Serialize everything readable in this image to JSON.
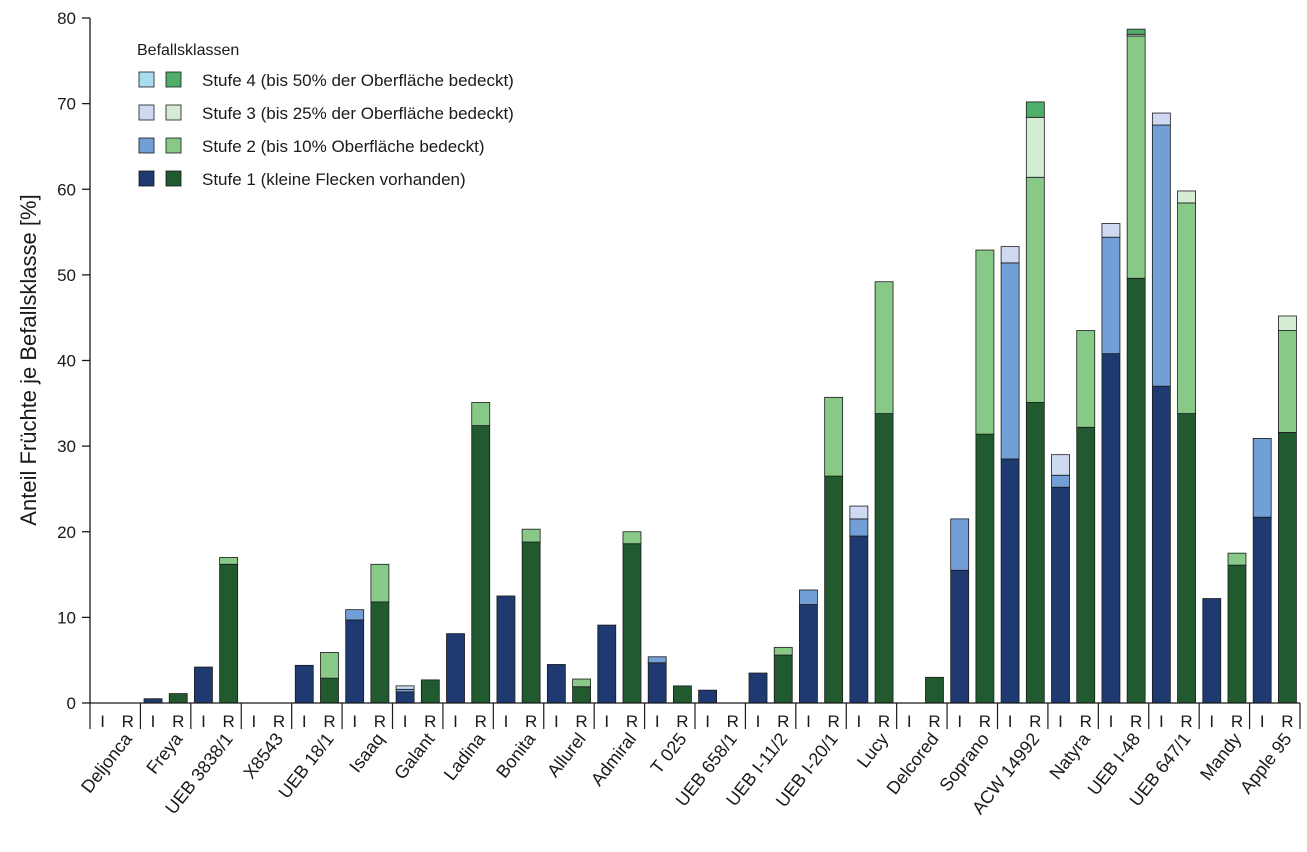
{
  "chart_data": {
    "type": "bar",
    "stacked": true,
    "title": "",
    "xlabel": "",
    "ylabel": "Anteil Früchte je Befallsklasse [%]",
    "ylim": [
      0,
      80
    ],
    "yticks": [
      0,
      10,
      20,
      30,
      40,
      50,
      60,
      70,
      80
    ],
    "grid": false,
    "legend_position": "top-left",
    "legend": {
      "title": "Befallsklassen",
      "entries": [
        {
          "label": "Stufe 4 (bis 50% der Oberfläche bedeckt)",
          "colors": [
            "#a8dcef",
            "#4fae6a"
          ]
        },
        {
          "label": "Stufe 3 (bis 25% der Oberfläche bedeckt)",
          "colors": [
            "#cfdaf2",
            "#d4ebd4"
          ]
        },
        {
          "label": "Stufe 2 (bis 10% Oberfläche bedeckt)",
          "colors": [
            "#719fd6",
            "#88c988"
          ]
        },
        {
          "label": "Stufe 1 (kleine Flecken vorhanden)",
          "colors": [
            "#1f3a70",
            "#215a2e"
          ]
        }
      ]
    },
    "sub_labels": [
      "I",
      "R"
    ],
    "colors": {
      "I": [
        "#1f3a70",
        "#719fd6",
        "#cfdaf2",
        "#a8dcef"
      ],
      "R": [
        "#215a2e",
        "#88c988",
        "#d4ebd4",
        "#4fae6a"
      ]
    },
    "categories": [
      "Deljonca",
      "Freya",
      "UEB 3838/1",
      "X8543",
      "UEB 18/1",
      "Isaaq",
      "Galant",
      "Ladina",
      "Bonita",
      "Allurel",
      "Admiral",
      "T 025",
      "UEB 658/1",
      "UEB I-11/2",
      "UEB I-20/1",
      "Lucy",
      "Delcored",
      "Soprano",
      "ACW 14992",
      "Natyra",
      "UEB I-48",
      "UEB 647/1",
      "Mandy",
      "Apple 95"
    ],
    "series": [
      {
        "name": "Stufe 1 (kleine Flecken vorhanden)",
        "I": [
          0,
          0.5,
          4.2,
          0,
          4.4,
          9.7,
          1.3,
          8.1,
          12.5,
          4.5,
          9.1,
          4.7,
          1.5,
          3.5,
          11.5,
          19.5,
          0,
          15.5,
          28.5,
          25.2,
          40.8,
          37.0,
          12.2,
          21.7
        ],
        "R": [
          0,
          1.1,
          16.2,
          0,
          2.9,
          11.8,
          2.7,
          32.4,
          18.8,
          1.9,
          18.6,
          2.0,
          0,
          5.6,
          26.5,
          33.8,
          3.0,
          31.4,
          35.1,
          32.2,
          49.6,
          33.8,
          16.1,
          31.6
        ]
      },
      {
        "name": "Stufe 2 (bis 10% Oberfläche bedeckt)",
        "I": [
          0,
          0,
          0,
          0,
          0,
          1.2,
          0.3,
          0,
          0,
          0,
          0,
          0.7,
          0,
          0,
          1.7,
          2.0,
          0,
          6.0,
          22.9,
          1.4,
          13.6,
          30.5,
          0,
          9.2
        ],
        "R": [
          0,
          0,
          0.8,
          0,
          3.0,
          4.4,
          0,
          2.7,
          1.5,
          0.9,
          1.4,
          0,
          0,
          0.9,
          9.2,
          15.4,
          0,
          21.5,
          26.3,
          11.3,
          28.3,
          24.6,
          1.4,
          11.9
        ]
      },
      {
        "name": "Stufe 3 (bis 25% der Oberfläche bedeckt)",
        "I": [
          0,
          0,
          0,
          0,
          0,
          0,
          0.4,
          0,
          0,
          0,
          0,
          0,
          0,
          0,
          0,
          1.5,
          0,
          0,
          1.9,
          2.4,
          1.6,
          1.4,
          0,
          0
        ],
        "R": [
          0,
          0,
          0,
          0,
          0,
          0,
          0,
          0,
          0,
          0,
          0,
          0,
          0,
          0,
          0,
          0,
          0,
          0,
          7.0,
          0,
          0.2,
          1.4,
          0,
          1.7
        ]
      },
      {
        "name": "Stufe 4 (bis 50% der Oberfläche bedeckt)",
        "I": [
          0,
          0,
          0,
          0,
          0,
          0,
          0,
          0,
          0,
          0,
          0,
          0,
          0,
          0,
          0,
          0,
          0,
          0,
          0,
          0,
          0,
          0,
          0,
          0
        ],
        "R": [
          0,
          0,
          0,
          0,
          0,
          0,
          0,
          0,
          0,
          0,
          0,
          0,
          0,
          0,
          0,
          0,
          0,
          0,
          1.8,
          0,
          0.6,
          0,
          0,
          0
        ]
      }
    ]
  }
}
